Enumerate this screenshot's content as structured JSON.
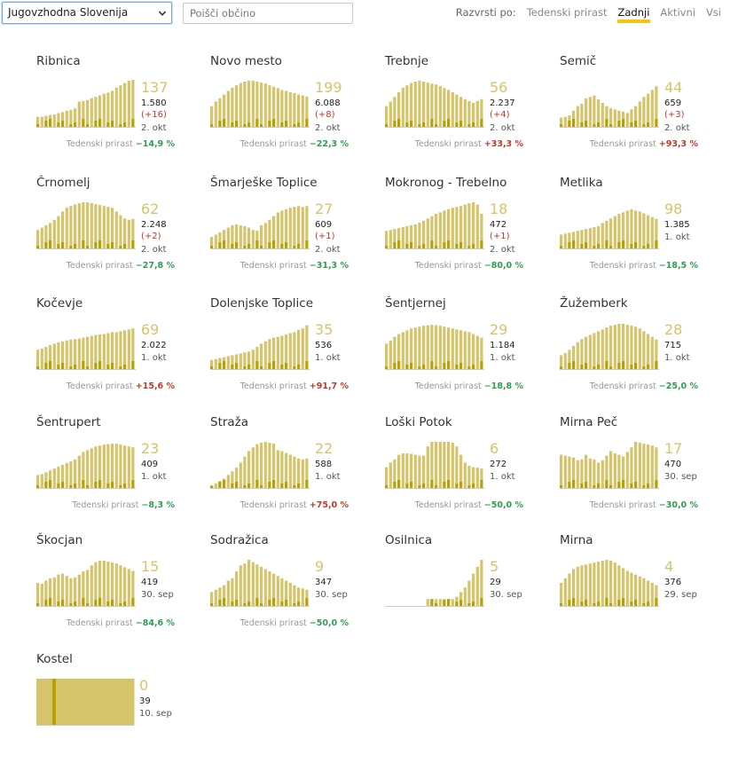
{
  "toolbar": {
    "region_value": "Jugovzhodna Slovenija",
    "search_placeholder": "Poišči občino",
    "sort_label": "Razvrsti po:",
    "sort_options": [
      "Tedenski prirast",
      "Zadnji",
      "Aktivni",
      "Vsi"
    ],
    "sort_active": "Zadnji"
  },
  "colors": {
    "bar_light": "#d5c46a",
    "bar_dark": "#b9a200",
    "value": "#d5c46a",
    "accent": "#f4c40f",
    "negative_growth": "#2e9e4f",
    "positive_growth": "#c0392b"
  },
  "growth_label": "Tedenski prirast",
  "municipalities": [
    {
      "name": "Ribnica",
      "active": "137",
      "total": "1.580",
      "delta": "(+16)",
      "date": "2. okt",
      "growth": "−14,9 %",
      "growth_sign": "neg"
    },
    {
      "name": "Novo mesto",
      "active": "199",
      "total": "6.088",
      "delta": "(+8)",
      "date": "2. okt",
      "growth": "−22,3 %",
      "growth_sign": "neg"
    },
    {
      "name": "Trebnje",
      "active": "56",
      "total": "2.237",
      "delta": "(+4)",
      "date": "2. okt",
      "growth": "+33,3 %",
      "growth_sign": "pos"
    },
    {
      "name": "Semič",
      "active": "44",
      "total": "659",
      "delta": "(+3)",
      "date": "2. okt",
      "growth": "+93,3 %",
      "growth_sign": "pos"
    },
    {
      "name": "Črnomelj",
      "active": "62",
      "total": "2.248",
      "delta": "(+2)",
      "date": "2. okt",
      "growth": "−27,8 %",
      "growth_sign": "neg"
    },
    {
      "name": "Šmarješke Toplice",
      "active": "27",
      "total": "609",
      "delta": "(+1)",
      "date": "2. okt",
      "growth": "−31,3 %",
      "growth_sign": "neg"
    },
    {
      "name": "Mokronog - Trebelno",
      "active": "18",
      "total": "472",
      "delta": "(+1)",
      "date": "2. okt",
      "growth": "−80,0 %",
      "growth_sign": "neg"
    },
    {
      "name": "Metlika",
      "active": "98",
      "total": "1.385",
      "delta": "",
      "date": "1. okt",
      "growth": "−18,5 %",
      "growth_sign": "neg"
    },
    {
      "name": "Kočevje",
      "active": "69",
      "total": "2.022",
      "delta": "",
      "date": "1. okt",
      "growth": "+15,6 %",
      "growth_sign": "pos"
    },
    {
      "name": "Dolenjske Toplice",
      "active": "35",
      "total": "536",
      "delta": "",
      "date": "1. okt",
      "growth": "+91,7 %",
      "growth_sign": "pos"
    },
    {
      "name": "Šentjernej",
      "active": "29",
      "total": "1.184",
      "delta": "",
      "date": "1. okt",
      "growth": "−18,8 %",
      "growth_sign": "neg"
    },
    {
      "name": "Žužemberk",
      "active": "28",
      "total": "715",
      "delta": "",
      "date": "1. okt",
      "growth": "−25,0 %",
      "growth_sign": "neg"
    },
    {
      "name": "Šentrupert",
      "active": "23",
      "total": "409",
      "delta": "",
      "date": "1. okt",
      "growth": "−8,3 %",
      "growth_sign": "neg"
    },
    {
      "name": "Straža",
      "active": "22",
      "total": "588",
      "delta": "",
      "date": "1. okt",
      "growth": "+75,0 %",
      "growth_sign": "pos"
    },
    {
      "name": "Loški Potok",
      "active": "6",
      "total": "272",
      "delta": "",
      "date": "1. okt",
      "growth": "−50,0 %",
      "growth_sign": "neg"
    },
    {
      "name": "Mirna Peč",
      "active": "17",
      "total": "470",
      "delta": "",
      "date": "30. sep",
      "growth": "−30,0 %",
      "growth_sign": "neg"
    },
    {
      "name": "Škocjan",
      "active": "15",
      "total": "419",
      "delta": "",
      "date": "30. sep",
      "growth": "−84,6 %",
      "growth_sign": "neg"
    },
    {
      "name": "Sodražica",
      "active": "9",
      "total": "347",
      "delta": "",
      "date": "30. sep",
      "growth": "−50,0 %",
      "growth_sign": "neg"
    },
    {
      "name": "Osilnica",
      "active": "5",
      "total": "29",
      "delta": "",
      "date": "30. sep",
      "growth": "",
      "growth_sign": ""
    },
    {
      "name": "Mirna",
      "active": "4",
      "total": "376",
      "delta": "",
      "date": "29. sep",
      "growth": "",
      "growth_sign": ""
    },
    {
      "name": "Kostel",
      "active": "0",
      "total": "39",
      "delta": "",
      "date": "10. sep",
      "growth": "",
      "growth_sign": ""
    }
  ],
  "chart_data": [
    {
      "type": "bar",
      "municipality": "Ribnica",
      "active": [
        22,
        22,
        24,
        26,
        27,
        30,
        32,
        35,
        37,
        40,
        55,
        56,
        58,
        62,
        65,
        68,
        72,
        74,
        78,
        85,
        90,
        95,
        100,
        102
      ]
    },
    {
      "type": "bar",
      "municipality": "Novo mesto",
      "active": [
        45,
        55,
        62,
        70,
        78,
        85,
        90,
        95,
        98,
        100,
        100,
        98,
        96,
        94,
        90,
        87,
        84,
        80,
        78,
        75,
        73,
        70,
        68,
        66
      ]
    },
    {
      "type": "bar",
      "municipality": "Trebnje",
      "active": [
        45,
        55,
        65,
        75,
        85,
        90,
        95,
        98,
        100,
        98,
        96,
        94,
        92,
        88,
        84,
        80,
        75,
        70,
        65,
        60,
        56,
        52,
        56,
        60
      ]
    },
    {
      "type": "bar",
      "municipality": "Semič",
      "active": [
        20,
        22,
        25,
        35,
        45,
        50,
        62,
        65,
        68,
        60,
        52,
        45,
        40,
        38,
        35,
        33,
        30,
        38,
        45,
        55,
        65,
        72,
        80,
        88
      ]
    },
    {
      "type": "bar",
      "municipality": "Črnomelj",
      "active": [
        40,
        45,
        50,
        55,
        62,
        70,
        80,
        88,
        92,
        95,
        98,
        100,
        100,
        98,
        96,
        94,
        92,
        90,
        88,
        80,
        72,
        65,
        62,
        64
      ]
    },
    {
      "type": "bar",
      "municipality": "Šmarješke Toplice",
      "active": [
        25,
        30,
        35,
        40,
        45,
        50,
        52,
        50,
        48,
        45,
        40,
        38,
        50,
        55,
        62,
        70,
        78,
        82,
        85,
        88,
        90,
        92,
        90,
        92
      ]
    },
    {
      "type": "bar",
      "municipality": "Mokronog - Trebelno",
      "active": [
        38,
        40,
        42,
        44,
        46,
        48,
        50,
        52,
        56,
        60,
        65,
        70,
        75,
        78,
        82,
        85,
        88,
        90,
        92,
        95,
        98,
        100,
        95,
        75
      ]
    },
    {
      "type": "bar",
      "municipality": "Metlika",
      "active": [
        30,
        32,
        34,
        36,
        38,
        40,
        42,
        44,
        46,
        48,
        55,
        60,
        65,
        70,
        75,
        78,
        82,
        85,
        82,
        80,
        76,
        72,
        68,
        64
      ]
    },
    {
      "type": "bar",
      "municipality": "Kočevje",
      "active": [
        42,
        44,
        48,
        52,
        55,
        58,
        60,
        62,
        64,
        65,
        66,
        68,
        70,
        72,
        74,
        75,
        76,
        78,
        80,
        80,
        82,
        84,
        86,
        88
      ]
    },
    {
      "type": "bar",
      "municipality": "Dolenjske Toplice",
      "active": [
        20,
        22,
        24,
        26,
        28,
        30,
        32,
        34,
        36,
        38,
        42,
        48,
        55,
        60,
        65,
        68,
        70,
        72,
        75,
        78,
        80,
        85,
        88,
        95
      ]
    },
    {
      "type": "bar",
      "municipality": "Šentjernej",
      "active": [
        55,
        62,
        70,
        76,
        80,
        84,
        88,
        90,
        92,
        94,
        95,
        96,
        95,
        94,
        92,
        90,
        88,
        86,
        84,
        82,
        80,
        76,
        72,
        68
      ]
    },
    {
      "type": "bar",
      "municipality": "Žužemberk",
      "active": [
        30,
        35,
        42,
        50,
        58,
        65,
        70,
        74,
        78,
        82,
        86,
        90,
        94,
        96,
        98,
        98,
        96,
        94,
        92,
        88,
        82,
        76,
        70,
        64
      ]
    },
    {
      "type": "bar",
      "municipality": "Šentrupert",
      "active": [
        28,
        30,
        34,
        38,
        42,
        46,
        50,
        54,
        58,
        62,
        70,
        78,
        82,
        86,
        90,
        92,
        94,
        95,
        96,
        96,
        94,
        92,
        90,
        88
      ]
    },
    {
      "type": "bar",
      "municipality": "Straža",
      "active": [
        5,
        10,
        15,
        20,
        28,
        36,
        44,
        55,
        68,
        80,
        88,
        95,
        98,
        100,
        98,
        96,
        82,
        80,
        76,
        72,
        68,
        64,
        62,
        64
      ]
    },
    {
      "type": "bar",
      "municipality": "Loški Potok",
      "active": [
        45,
        55,
        62,
        72,
        75,
        75,
        74,
        72,
        70,
        70,
        90,
        100,
        100,
        100,
        100,
        100,
        98,
        90,
        72,
        55,
        48,
        45,
        44,
        42
      ]
    },
    {
      "type": "bar",
      "municipality": "Mirna Peč",
      "active": [
        72,
        70,
        68,
        66,
        60,
        62,
        72,
        64,
        62,
        55,
        60,
        70,
        80,
        75,
        72,
        68,
        78,
        88,
        100,
        98,
        96,
        94,
        92,
        88
      ]
    },
    {
      "type": "bar",
      "municipality": "Škocjan",
      "active": [
        50,
        48,
        55,
        60,
        62,
        68,
        70,
        65,
        60,
        62,
        68,
        75,
        78,
        88,
        95,
        98,
        98,
        96,
        94,
        92,
        88,
        84,
        80,
        76
      ]
    },
    {
      "type": "bar",
      "municipality": "Sodražica",
      "active": [
        30,
        35,
        40,
        45,
        55,
        60,
        75,
        88,
        92,
        100,
        95,
        90,
        85,
        80,
        75,
        70,
        65,
        60,
        55,
        50,
        45,
        40,
        38,
        35
      ]
    },
    {
      "type": "bar",
      "municipality": "Osilnica",
      "active": [
        0,
        0,
        0,
        0,
        0,
        0,
        0,
        0,
        0,
        0,
        15,
        15,
        15,
        15,
        15,
        15,
        15,
        20,
        30,
        40,
        55,
        70,
        85,
        100
      ]
    },
    {
      "type": "bar",
      "municipality": "Mirna",
      "active": [
        50,
        60,
        70,
        80,
        85,
        88,
        90,
        92,
        94,
        96,
        98,
        100,
        98,
        94,
        88,
        82,
        76,
        72,
        68,
        64,
        60,
        55,
        50,
        45
      ]
    },
    {
      "type": "bar",
      "municipality": "Kostel",
      "active": [
        100,
        100,
        100,
        100,
        100,
        100,
        100,
        100,
        100,
        100,
        100,
        100,
        100,
        100
      ]
    }
  ]
}
